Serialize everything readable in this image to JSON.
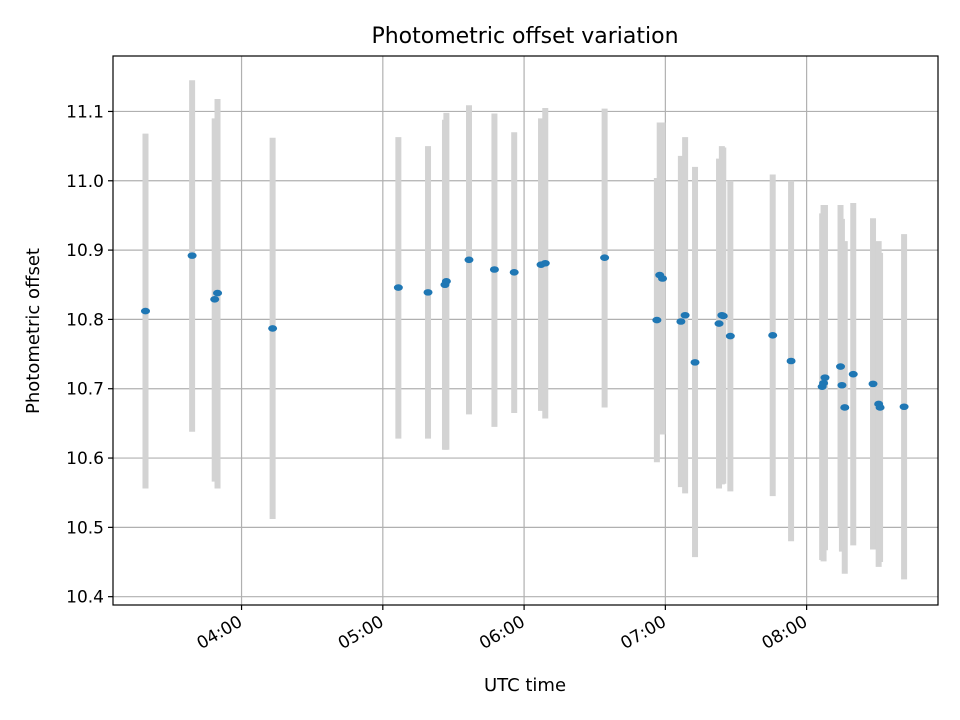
{
  "chart_data": {
    "type": "scatter",
    "title": "Photometric offset variation",
    "xlabel": "UTC time",
    "ylabel": "Photometric offset",
    "x_unit": "hours UTC",
    "xlim": [
      3.09,
      8.93
    ],
    "ylim": [
      10.388,
      11.18
    ],
    "grid": true,
    "x_ticks": [
      {
        "value": 4,
        "label": "04:00"
      },
      {
        "value": 5,
        "label": "05:00"
      },
      {
        "value": 6,
        "label": "06:00"
      },
      {
        "value": 7,
        "label": "07:00"
      },
      {
        "value": 8,
        "label": "08:00"
      }
    ],
    "y_ticks": [
      {
        "value": 10.4,
        "label": "10.4"
      },
      {
        "value": 10.5,
        "label": "10.5"
      },
      {
        "value": 10.6,
        "label": "10.6"
      },
      {
        "value": 10.7,
        "label": "10.7"
      },
      {
        "value": 10.8,
        "label": "10.8"
      },
      {
        "value": 10.9,
        "label": "10.9"
      },
      {
        "value": 11.0,
        "label": "11.0"
      },
      {
        "value": 11.1,
        "label": "11.1"
      }
    ],
    "colors": {
      "point": "#1f77b4",
      "errorbar": "#d3d3d3",
      "grid": "#b0b0b0"
    },
    "points": [
      {
        "x": 3.32,
        "y": 10.812,
        "ylow": 10.556,
        "yhigh": 11.068
      },
      {
        "x": 3.65,
        "y": 10.892,
        "ylow": 10.638,
        "yhigh": 11.145
      },
      {
        "x": 3.81,
        "y": 10.829,
        "ylow": 10.566,
        "yhigh": 11.09
      },
      {
        "x": 3.83,
        "y": 10.838,
        "ylow": 10.556,
        "yhigh": 11.118
      },
      {
        "x": 4.22,
        "y": 10.787,
        "ylow": 10.512,
        "yhigh": 11.062
      },
      {
        "x": 5.11,
        "y": 10.846,
        "ylow": 10.628,
        "yhigh": 11.063
      },
      {
        "x": 5.32,
        "y": 10.839,
        "ylow": 10.628,
        "yhigh": 11.05
      },
      {
        "x": 5.44,
        "y": 10.85,
        "ylow": 10.612,
        "yhigh": 11.088
      },
      {
        "x": 5.45,
        "y": 10.855,
        "ylow": 10.612,
        "yhigh": 11.098
      },
      {
        "x": 5.61,
        "y": 10.886,
        "ylow": 10.663,
        "yhigh": 11.109
      },
      {
        "x": 5.79,
        "y": 10.872,
        "ylow": 10.645,
        "yhigh": 11.097
      },
      {
        "x": 5.93,
        "y": 10.868,
        "ylow": 10.665,
        "yhigh": 11.07
      },
      {
        "x": 6.12,
        "y": 10.879,
        "ylow": 10.668,
        "yhigh": 11.09
      },
      {
        "x": 6.15,
        "y": 10.881,
        "ylow": 10.657,
        "yhigh": 11.105
      },
      {
        "x": 6.57,
        "y": 10.889,
        "ylow": 10.673,
        "yhigh": 11.104
      },
      {
        "x": 6.94,
        "y": 10.799,
        "ylow": 10.594,
        "yhigh": 11.004
      },
      {
        "x": 6.96,
        "y": 10.864,
        "ylow": 10.644,
        "yhigh": 11.084
      },
      {
        "x": 6.98,
        "y": 10.859,
        "ylow": 10.634,
        "yhigh": 11.084
      },
      {
        "x": 7.11,
        "y": 10.797,
        "ylow": 10.558,
        "yhigh": 11.036
      },
      {
        "x": 7.14,
        "y": 10.806,
        "ylow": 10.549,
        "yhigh": 11.063
      },
      {
        "x": 7.21,
        "y": 10.738,
        "ylow": 10.457,
        "yhigh": 11.02
      },
      {
        "x": 7.38,
        "y": 10.794,
        "ylow": 10.556,
        "yhigh": 11.032
      },
      {
        "x": 7.4,
        "y": 10.806,
        "ylow": 10.562,
        "yhigh": 11.05
      },
      {
        "x": 7.41,
        "y": 10.805,
        "ylow": 10.563,
        "yhigh": 11.048
      },
      {
        "x": 7.46,
        "y": 10.776,
        "ylow": 10.552,
        "yhigh": 11.0
      },
      {
        "x": 7.76,
        "y": 10.777,
        "ylow": 10.545,
        "yhigh": 11.009
      },
      {
        "x": 7.89,
        "y": 10.74,
        "ylow": 10.48,
        "yhigh": 11.0
      },
      {
        "x": 8.11,
        "y": 10.703,
        "ylow": 10.453,
        "yhigh": 10.953
      },
      {
        "x": 8.12,
        "y": 10.708,
        "ylow": 10.451,
        "yhigh": 10.965
      },
      {
        "x": 8.13,
        "y": 10.716,
        "ylow": 10.467,
        "yhigh": 10.965
      },
      {
        "x": 8.24,
        "y": 10.732,
        "ylow": 10.5,
        "yhigh": 10.965
      },
      {
        "x": 8.25,
        "y": 10.705,
        "ylow": 10.465,
        "yhigh": 10.945
      },
      {
        "x": 8.27,
        "y": 10.673,
        "ylow": 10.433,
        "yhigh": 10.913
      },
      {
        "x": 8.33,
        "y": 10.721,
        "ylow": 10.474,
        "yhigh": 10.968
      },
      {
        "x": 8.47,
        "y": 10.707,
        "ylow": 10.468,
        "yhigh": 10.946
      },
      {
        "x": 8.51,
        "y": 10.678,
        "ylow": 10.443,
        "yhigh": 10.913
      },
      {
        "x": 8.52,
        "y": 10.673,
        "ylow": 10.45,
        "yhigh": 10.896
      },
      {
        "x": 8.69,
        "y": 10.674,
        "ylow": 10.425,
        "yhigh": 10.923
      }
    ]
  }
}
